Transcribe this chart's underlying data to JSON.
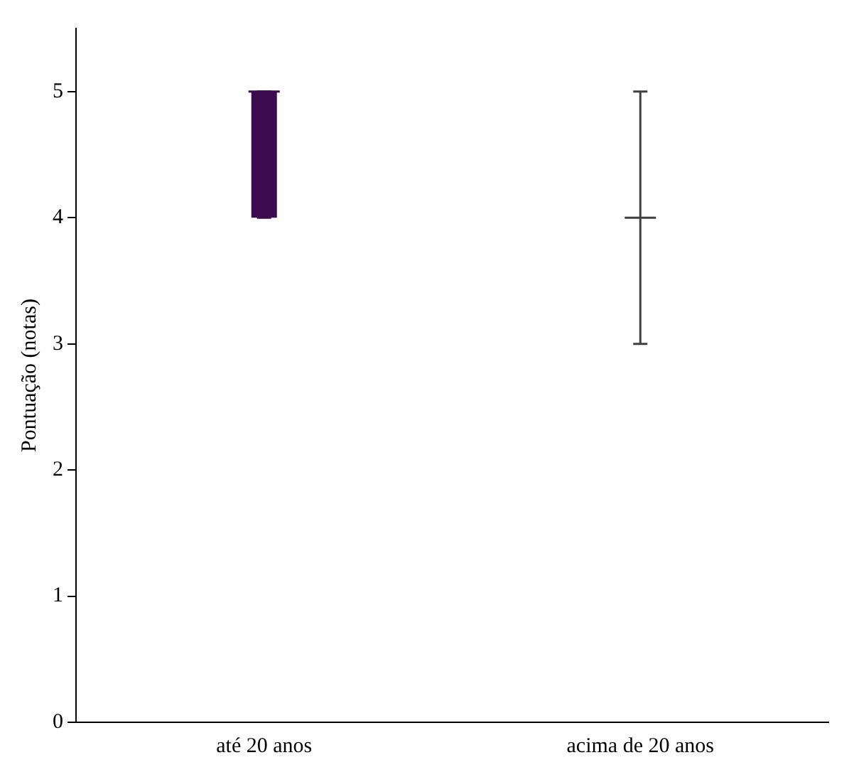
{
  "chart_data": {
    "type": "box",
    "ylabel": "Pontuação (notas)",
    "categories": [
      "até 20 anos",
      "acima de 20 anos"
    ],
    "boxes": [
      {
        "low": 4,
        "q1": 4,
        "median": 5,
        "q3": 5,
        "high": 5
      },
      {
        "low": 3,
        "q1": 4,
        "median": 4,
        "q3": 4,
        "high": 5
      }
    ],
    "colors": [
      "#3d0a4f",
      "#404040"
    ],
    "ylim": [
      0,
      5.5
    ],
    "yticks": [
      0,
      1,
      2,
      3,
      4,
      5
    ],
    "grid": false,
    "legend": false
  }
}
